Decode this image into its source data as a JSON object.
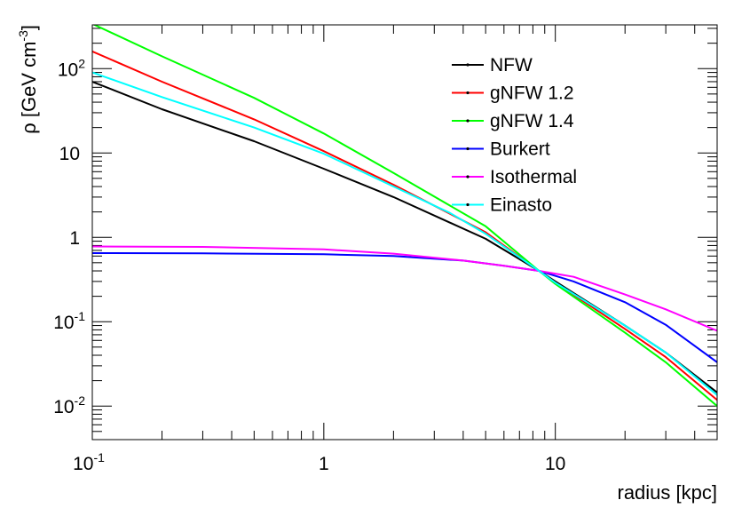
{
  "chart_data": {
    "type": "line",
    "title": "",
    "xlabel": "radius [kpc]",
    "ylabel": {
      "base": "ρ [GeV cm",
      "sup": "-3",
      "end": "]"
    },
    "x_scale": "log",
    "y_scale": "log",
    "xlim": [
      0.1,
      50
    ],
    "ylim": [
      0.004,
      330
    ],
    "grid": false,
    "legend_position": "top-right",
    "x_ticks": [
      {
        "value": 0.1,
        "base": "10",
        "exp": "-1"
      },
      {
        "value": 1,
        "base": "1",
        "exp": ""
      },
      {
        "value": 10,
        "base": "10",
        "exp": ""
      }
    ],
    "y_ticks": [
      {
        "value": 0.01,
        "base": "10",
        "exp": "-2"
      },
      {
        "value": 0.1,
        "base": "10",
        "exp": "-1"
      },
      {
        "value": 1,
        "base": "1",
        "exp": ""
      },
      {
        "value": 10,
        "base": "10",
        "exp": ""
      },
      {
        "value": 100,
        "base": "10",
        "exp": "2"
      }
    ],
    "series": [
      {
        "name": "NFW",
        "color": "#000000",
        "x": [
          0.1,
          0.2,
          0.5,
          1,
          2,
          5,
          8.5,
          10,
          20,
          30,
          50
        ],
        "y": [
          70,
          33,
          13.8,
          6.5,
          3.0,
          0.96,
          0.4,
          0.3,
          0.09,
          0.043,
          0.0145
        ]
      },
      {
        "name": "gNFW 1.2",
        "color": "#ff0000",
        "x": [
          0.1,
          0.2,
          0.5,
          1,
          2,
          5,
          8.5,
          10,
          20,
          30,
          50
        ],
        "y": [
          160,
          70,
          25,
          10.5,
          4.2,
          1.15,
          0.4,
          0.29,
          0.082,
          0.038,
          0.0118
        ]
      },
      {
        "name": "gNFW 1.4",
        "color": "#00ff00",
        "x": [
          0.1,
          0.2,
          0.5,
          1,
          2,
          5,
          8.5,
          10,
          20,
          30,
          50
        ],
        "y": [
          340,
          140,
          45,
          17,
          5.8,
          1.35,
          0.4,
          0.28,
          0.074,
          0.033,
          0.01
        ]
      },
      {
        "name": "Burkert",
        "color": "#0000ff",
        "x": [
          0.1,
          0.3,
          1,
          2,
          4,
          6,
          8.5,
          12,
          20,
          30,
          50
        ],
        "y": [
          0.65,
          0.645,
          0.63,
          0.6,
          0.53,
          0.46,
          0.4,
          0.3,
          0.17,
          0.092,
          0.033
        ]
      },
      {
        "name": "Isothermal",
        "color": "#ff00ff",
        "x": [
          0.1,
          0.3,
          1,
          2,
          4,
          6,
          8.5,
          12,
          20,
          30,
          50
        ],
        "y": [
          0.78,
          0.77,
          0.72,
          0.64,
          0.53,
          0.46,
          0.4,
          0.34,
          0.21,
          0.14,
          0.078
        ]
      },
      {
        "name": "Einasto",
        "color": "#00ffff",
        "x": [
          0.1,
          0.2,
          0.5,
          1,
          2,
          3.5,
          5,
          8.5,
          10,
          20,
          30,
          50
        ],
        "y": [
          90,
          46,
          20,
          9.8,
          4.0,
          1.95,
          1.1,
          0.4,
          0.29,
          0.09,
          0.043,
          0.0135
        ]
      }
    ]
  }
}
